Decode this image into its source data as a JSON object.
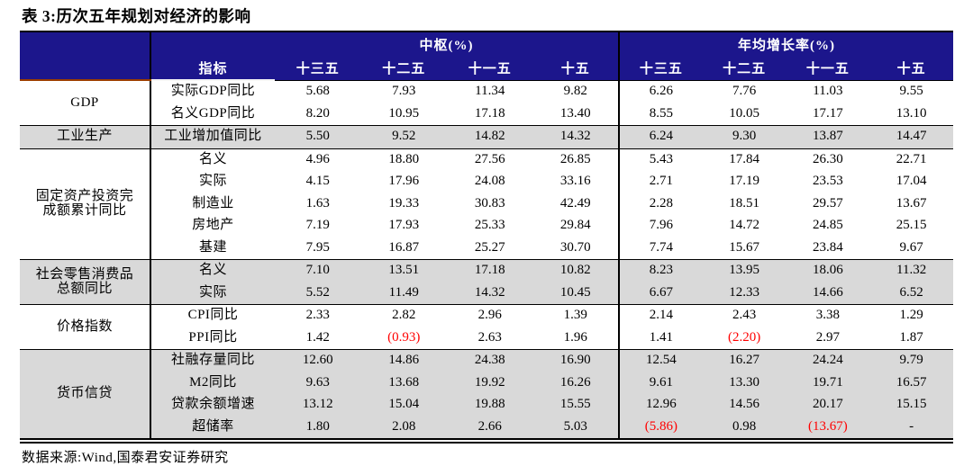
{
  "title": "表 3:历次五年规划对经济的影响",
  "source_note": "数据来源:Wind,国泰君安证券研究",
  "colors": {
    "header_bg": "#1c168c",
    "shaded_row_bg": "#d9d9d9",
    "negative_value": "#ff0000",
    "corner_accent_line": "#9c3d00"
  },
  "chart_data": {
    "type": "table",
    "title": "表 3:历次五年规划对经济的影响",
    "group_headers": {
      "center": "中枢(%)",
      "avg_growth": "年均增长率(%)"
    },
    "indicator_header": "指标",
    "period_headers": [
      "十三五",
      "十二五",
      "十一五",
      "十五"
    ],
    "note": "values in parentheses are negative and shown in red",
    "groups": [
      {
        "name": "GDP",
        "shaded": false,
        "rows": [
          {
            "label": "实际GDP同比",
            "center": [
              "5.68",
              "7.93",
              "11.34",
              "9.82"
            ],
            "avg": [
              "6.26",
              "7.76",
              "11.03",
              "9.55"
            ]
          },
          {
            "label": "名义GDP同比",
            "center": [
              "8.20",
              "10.95",
              "17.18",
              "13.40"
            ],
            "avg": [
              "8.55",
              "10.05",
              "17.17",
              "13.10"
            ]
          }
        ]
      },
      {
        "name": "工业生产",
        "shaded": true,
        "rows": [
          {
            "label": "工业增加值同比",
            "center": [
              "5.50",
              "9.52",
              "14.82",
              "14.32"
            ],
            "avg": [
              "6.24",
              "9.30",
              "13.87",
              "14.47"
            ]
          }
        ]
      },
      {
        "name": "固定资产投资完\n成额累计同比",
        "shaded": false,
        "rows": [
          {
            "label": "名义",
            "center": [
              "4.96",
              "18.80",
              "27.56",
              "26.85"
            ],
            "avg": [
              "5.43",
              "17.84",
              "26.30",
              "22.71"
            ]
          },
          {
            "label": "实际",
            "center": [
              "4.15",
              "17.96",
              "24.08",
              "33.16"
            ],
            "avg": [
              "2.71",
              "17.19",
              "23.53",
              "17.04"
            ]
          },
          {
            "label": "制造业",
            "center": [
              "1.63",
              "19.33",
              "30.83",
              "42.49"
            ],
            "avg": [
              "2.28",
              "18.51",
              "29.57",
              "13.67"
            ]
          },
          {
            "label": "房地产",
            "center": [
              "7.19",
              "17.93",
              "25.33",
              "29.84"
            ],
            "avg": [
              "7.96",
              "14.72",
              "24.85",
              "25.15"
            ]
          },
          {
            "label": "基建",
            "center": [
              "7.95",
              "16.87",
              "25.27",
              "30.70"
            ],
            "avg": [
              "7.74",
              "15.67",
              "23.84",
              "9.67"
            ]
          }
        ]
      },
      {
        "name": "社会零售消费品\n总额同比",
        "shaded": true,
        "rows": [
          {
            "label": "名义",
            "center": [
              "7.10",
              "13.51",
              "17.18",
              "10.82"
            ],
            "avg": [
              "8.23",
              "13.95",
              "18.06",
              "11.32"
            ]
          },
          {
            "label": "实际",
            "center": [
              "5.52",
              "11.49",
              "14.32",
              "10.45"
            ],
            "avg": [
              "6.67",
              "12.33",
              "14.66",
              "6.52"
            ]
          }
        ]
      },
      {
        "name": "价格指数",
        "shaded": false,
        "rows": [
          {
            "label": "CPI同比",
            "center": [
              "2.33",
              "2.82",
              "2.96",
              "1.39"
            ],
            "avg": [
              "2.14",
              "2.43",
              "3.38",
              "1.29"
            ]
          },
          {
            "label": "PPI同比",
            "center": [
              "1.42",
              "(0.93)",
              "2.63",
              "1.96"
            ],
            "avg": [
              "1.41",
              "(2.20)",
              "2.97",
              "1.87"
            ]
          }
        ]
      },
      {
        "name": "货币信贷",
        "shaded": true,
        "rows": [
          {
            "label": "社融存量同比",
            "center": [
              "12.60",
              "14.86",
              "24.38",
              "16.90"
            ],
            "avg": [
              "12.54",
              "16.27",
              "24.24",
              "9.79"
            ]
          },
          {
            "label": "M2同比",
            "center": [
              "9.63",
              "13.68",
              "19.92",
              "16.26"
            ],
            "avg": [
              "9.61",
              "13.30",
              "19.71",
              "16.57"
            ]
          },
          {
            "label": "贷款余额增速",
            "center": [
              "13.12",
              "15.04",
              "19.88",
              "15.55"
            ],
            "avg": [
              "12.96",
              "14.56",
              "20.17",
              "15.15"
            ]
          },
          {
            "label": "超储率",
            "center": [
              "1.80",
              "2.08",
              "2.66",
              "5.03"
            ],
            "avg": [
              "(5.86)",
              "0.98",
              "(13.67)",
              "-"
            ]
          }
        ]
      }
    ]
  }
}
